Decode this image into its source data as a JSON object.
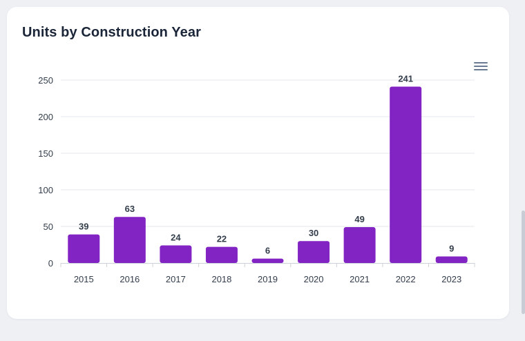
{
  "card": {
    "title": "Units by Construction Year"
  },
  "icons": {
    "menu": "hamburger-menu-icon"
  },
  "colors": {
    "bar": "#8224c4",
    "grid": "#e4e7ec",
    "label": "#333d4b",
    "title": "#1b2538"
  },
  "chart_data": {
    "type": "bar",
    "title": "Units by Construction Year",
    "categories": [
      "2015",
      "2016",
      "2017",
      "2018",
      "2019",
      "2020",
      "2021",
      "2022",
      "2023"
    ],
    "values": [
      39,
      63,
      24,
      22,
      6,
      30,
      49,
      241,
      9
    ],
    "data_labels": [
      "39",
      "63",
      "24",
      "22",
      "6",
      "30",
      "49",
      "241",
      "9"
    ],
    "y_ticks": [
      "0",
      "50",
      "100",
      "150",
      "200",
      "250"
    ],
    "y_tick_values": [
      0,
      50,
      100,
      150,
      200,
      250
    ],
    "ylim": [
      0,
      250
    ],
    "xlabel": "",
    "ylabel": "",
    "grid": true,
    "legend": "none"
  }
}
